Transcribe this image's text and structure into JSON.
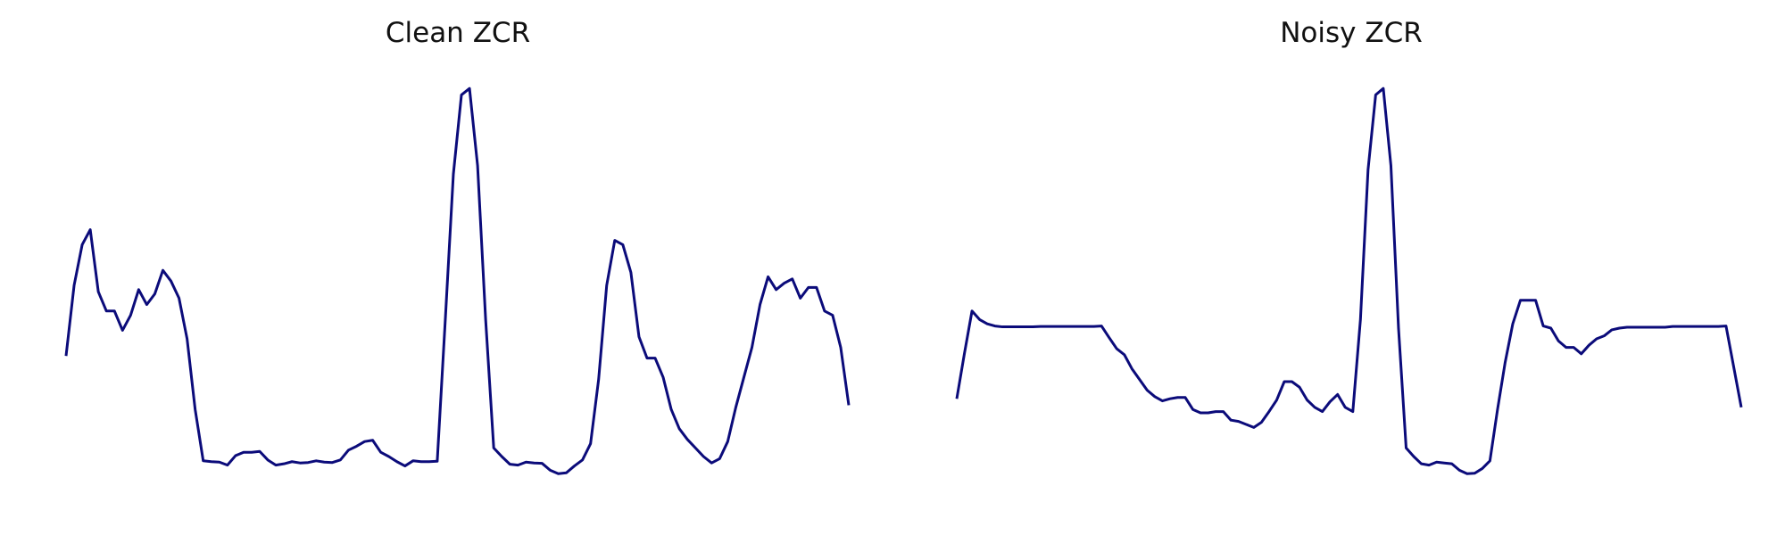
{
  "chart_data": [
    {
      "type": "line",
      "title": "Clean ZCR",
      "xlabel": "",
      "ylabel": "",
      "grid": false,
      "axes_visible": false,
      "legend": "none",
      "ylim": [
        0,
        1
      ],
      "color": "#0b0b7a",
      "series": [
        {
          "values": [
            0.335,
            0.5,
            0.595,
            0.63,
            0.485,
            0.44,
            0.44,
            0.395,
            0.43,
            0.49,
            0.455,
            0.48,
            0.535,
            0.51,
            0.47,
            0.375,
            0.21,
            0.09,
            0.088,
            0.087,
            0.08,
            0.102,
            0.11,
            0.11,
            0.112,
            0.092,
            0.08,
            0.083,
            0.088,
            0.085,
            0.086,
            0.09,
            0.087,
            0.086,
            0.092,
            0.115,
            0.124,
            0.135,
            0.138,
            0.11,
            0.1,
            0.088,
            0.078,
            0.09,
            0.088,
            0.088,
            0.089,
            0.42,
            0.76,
            0.945,
            0.96,
            0.78,
            0.42,
            0.12,
            0.1,
            0.082,
            0.08,
            0.087,
            0.085,
            0.084,
            0.068,
            0.06,
            0.062,
            0.078,
            0.092,
            0.13,
            0.28,
            0.5,
            0.605,
            0.595,
            0.53,
            0.38,
            0.33,
            0.33,
            0.285,
            0.21,
            0.165,
            0.14,
            0.12,
            0.1,
            0.085,
            0.095,
            0.135,
            0.215,
            0.285,
            0.355,
            0.455,
            0.52,
            0.49,
            0.505,
            0.515,
            0.47,
            0.495,
            0.495,
            0.44,
            0.43,
            0.355,
            0.22
          ]
        }
      ]
    },
    {
      "type": "line",
      "title": "Noisy ZCR",
      "xlabel": "",
      "ylabel": "",
      "grid": false,
      "axes_visible": false,
      "legend": "none",
      "ylim": [
        0,
        1
      ],
      "color": "#0b0b7a",
      "series": [
        {
          "values": [
            0.235,
            0.34,
            0.44,
            0.42,
            0.41,
            0.405,
            0.403,
            0.403,
            0.403,
            0.403,
            0.403,
            0.404,
            0.404,
            0.404,
            0.404,
            0.404,
            0.404,
            0.404,
            0.404,
            0.405,
            0.378,
            0.352,
            0.338,
            0.305,
            0.28,
            0.255,
            0.24,
            0.23,
            0.235,
            0.238,
            0.238,
            0.21,
            0.202,
            0.202,
            0.205,
            0.205,
            0.185,
            0.182,
            0.175,
            0.168,
            0.18,
            0.205,
            0.232,
            0.275,
            0.275,
            0.262,
            0.232,
            0.215,
            0.205,
            0.228,
            0.245,
            0.215,
            0.205,
            0.42,
            0.77,
            0.945,
            0.96,
            0.78,
            0.4,
            0.12,
            0.1,
            0.083,
            0.08,
            0.087,
            0.085,
            0.083,
            0.068,
            0.06,
            0.061,
            0.072,
            0.09,
            0.21,
            0.32,
            0.41,
            0.465,
            0.465,
            0.465,
            0.405,
            0.4,
            0.37,
            0.355,
            0.355,
            0.34,
            0.36,
            0.375,
            0.382,
            0.396,
            0.4,
            0.402,
            0.402,
            0.402,
            0.402,
            0.402,
            0.402,
            0.404,
            0.404,
            0.404,
            0.404,
            0.404,
            0.404,
            0.404,
            0.405,
            0.31,
            0.215
          ]
        }
      ]
    }
  ]
}
